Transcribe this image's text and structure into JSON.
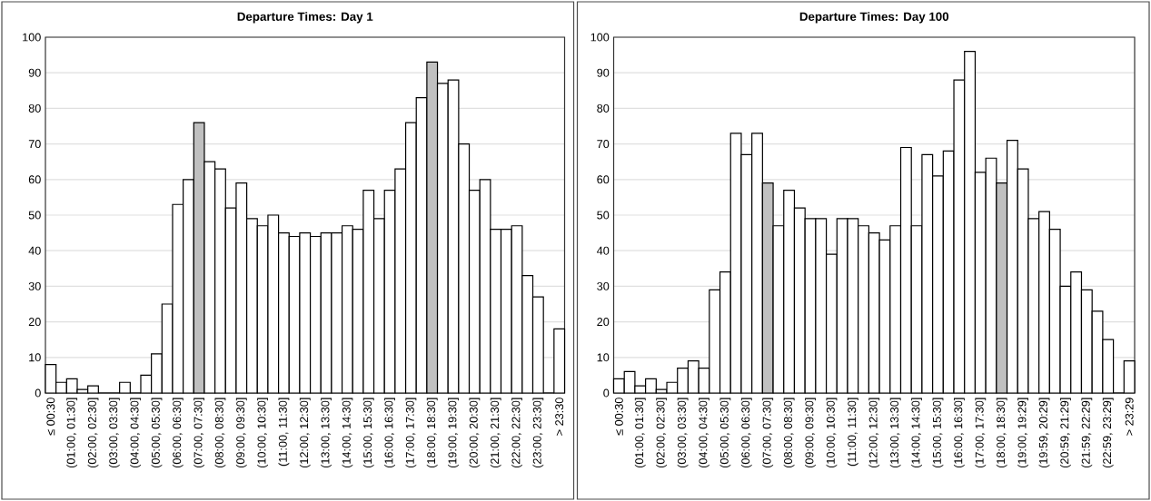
{
  "chart_data": [
    {
      "type": "bar",
      "title": "Departure Times: Day 1",
      "categories": [
        "≤ 00:30",
        null,
        "(01:00, 01:30]",
        null,
        "(02:00, 02:30]",
        null,
        "(03:00, 03:30]",
        null,
        "(04:00, 04:30]",
        null,
        "(05:00, 05:30]",
        null,
        "(06:00, 06:30]",
        null,
        "(07:00, 07:30]",
        null,
        "(08:00, 08:30]",
        null,
        "(09:00, 09:30]",
        null,
        "(10:00, 10:30]",
        null,
        "(11:00, 11:30]",
        null,
        "(12:00, 12:30]",
        null,
        "(13:00, 13:30]",
        null,
        "(14:00, 14:30]",
        null,
        "(15:00, 15:30]",
        null,
        "(16:00, 16:30]",
        null,
        "(17:00, 17:30]",
        null,
        "(18:00, 18:30]",
        null,
        "(19:00, 19:30]",
        null,
        "(20:00, 20:30]",
        null,
        "(21:00, 21:30]",
        null,
        "(22:00, 22:30]",
        null,
        "(23:00, 23:30]",
        null,
        "> 23:30"
      ],
      "values": [
        8,
        3,
        4,
        1,
        2,
        0,
        0,
        3,
        0,
        5,
        11,
        25,
        53,
        60,
        76,
        65,
        63,
        52,
        59,
        49,
        47,
        50,
        45,
        44,
        45,
        44,
        45,
        45,
        47,
        46,
        57,
        49,
        57,
        63,
        76,
        83,
        93,
        87,
        88,
        70,
        57,
        60,
        46,
        46,
        47,
        33,
        27,
        0,
        18
      ],
      "colors": [
        "#ffffff",
        "#ffffff",
        "#ffffff",
        "#ffffff",
        "#ffffff",
        "#ffffff",
        "#ffffff",
        "#ffffff",
        "#ffffff",
        "#ffffff",
        "#ffffff",
        "#ffffff",
        "#ffffff",
        "#ffffff",
        "#c0c0c0",
        "#ffffff",
        "#ffffff",
        "#ffffff",
        "#ffffff",
        "#ffffff",
        "#ffffff",
        "#ffffff",
        "#ffffff",
        "#ffffff",
        "#ffffff",
        "#ffffff",
        "#ffffff",
        "#ffffff",
        "#ffffff",
        "#ffffff",
        "#ffffff",
        "#ffffff",
        "#ffffff",
        "#ffffff",
        "#ffffff",
        "#ffffff",
        "#c0c0c0",
        "#ffffff",
        "#ffffff",
        "#ffffff",
        "#ffffff",
        "#ffffff",
        "#ffffff",
        "#ffffff",
        "#ffffff",
        "#ffffff",
        "#ffffff",
        "#ffffff",
        "#ffffff"
      ],
      "ylim": [
        0,
        100
      ],
      "yticks": [
        0,
        10,
        20,
        30,
        40,
        50,
        60,
        70,
        80,
        90,
        100
      ],
      "grid": "y"
    },
    {
      "type": "bar",
      "title": "Departure Times: Day 100",
      "categories": [
        "≤ 00:30",
        null,
        "(01:00, 01:30]",
        null,
        "(02:00, 02:30]",
        null,
        "(03:00, 03:30]",
        null,
        "(04:00, 04:30]",
        null,
        "(05:00, 05:30]",
        null,
        "(06:00, 06:30]",
        null,
        "(07:00, 07:30]",
        null,
        "(08:00, 08:30]",
        null,
        "(09:00, 09:30]",
        null,
        "(10:00, 10:30]",
        null,
        "(11:00, 11:30]",
        null,
        "(12:00, 12:30]",
        null,
        "(13:00, 13:30]",
        null,
        "(14:00, 14:30]",
        null,
        "(15:00, 15:30]",
        null,
        "(16:00, 16:30]",
        null,
        "(17:00, 17:30]",
        null,
        "(18:00, 18:30]",
        null,
        "(19:00, 19:29]",
        null,
        "(19:59, 20:29]",
        null,
        "(20:59, 21:29]",
        null,
        "(21:59, 22:29]",
        null,
        "(22:59, 23:29]",
        null,
        "> 23:29"
      ],
      "values": [
        4,
        6,
        2,
        4,
        1,
        3,
        7,
        9,
        7,
        29,
        34,
        73,
        67,
        73,
        59,
        47,
        57,
        52,
        49,
        49,
        39,
        49,
        49,
        47,
        45,
        43,
        47,
        69,
        47,
        67,
        61,
        68,
        88,
        96,
        62,
        66,
        59,
        71,
        63,
        49,
        51,
        46,
        30,
        34,
        29,
        23,
        15,
        0,
        9
      ],
      "colors": [
        "#ffffff",
        "#ffffff",
        "#ffffff",
        "#ffffff",
        "#ffffff",
        "#ffffff",
        "#ffffff",
        "#ffffff",
        "#ffffff",
        "#ffffff",
        "#ffffff",
        "#ffffff",
        "#ffffff",
        "#ffffff",
        "#c0c0c0",
        "#ffffff",
        "#ffffff",
        "#ffffff",
        "#ffffff",
        "#ffffff",
        "#ffffff",
        "#ffffff",
        "#ffffff",
        "#ffffff",
        "#ffffff",
        "#ffffff",
        "#ffffff",
        "#ffffff",
        "#ffffff",
        "#ffffff",
        "#ffffff",
        "#ffffff",
        "#ffffff",
        "#ffffff",
        "#ffffff",
        "#ffffff",
        "#c0c0c0",
        "#ffffff",
        "#ffffff",
        "#ffffff",
        "#ffffff",
        "#ffffff",
        "#ffffff",
        "#ffffff",
        "#ffffff",
        "#ffffff",
        "#ffffff",
        "#ffffff",
        "#ffffff"
      ],
      "ylim": [
        0,
        100
      ],
      "yticks": [
        0,
        10,
        20,
        30,
        40,
        50,
        60,
        70,
        80,
        90,
        100
      ],
      "grid": "y"
    }
  ]
}
